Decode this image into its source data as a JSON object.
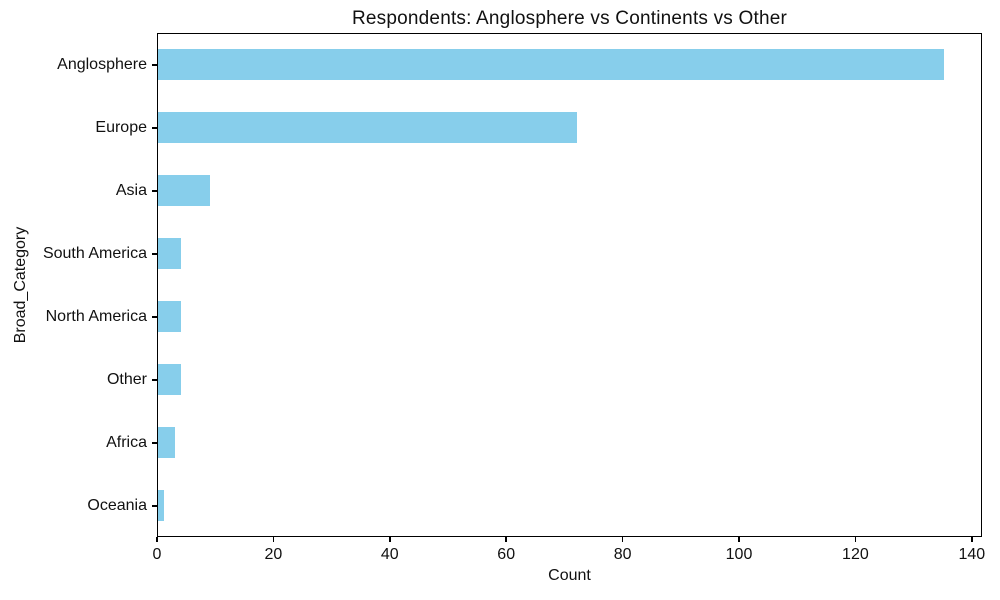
{
  "figure": {
    "background": "#ffffff",
    "text_color": "#111111",
    "spine_color": "#000000"
  },
  "chart_data": {
    "type": "bar",
    "orientation": "horizontal",
    "title": "Respondents: Anglosphere vs Continents vs Other",
    "xlabel": "Count",
    "ylabel": "Broad_Category",
    "categories": [
      "Anglosphere",
      "Europe",
      "Asia",
      "South America",
      "North America",
      "Other",
      "Africa",
      "Oceania"
    ],
    "values": [
      135,
      72,
      9,
      4,
      4,
      4,
      3,
      1
    ],
    "xticks": [
      0,
      20,
      40,
      60,
      80,
      100,
      120,
      140
    ],
    "xlim": [
      0,
      141.75
    ],
    "bar_color": "#87CEEB",
    "grid": false,
    "legend": false
  }
}
